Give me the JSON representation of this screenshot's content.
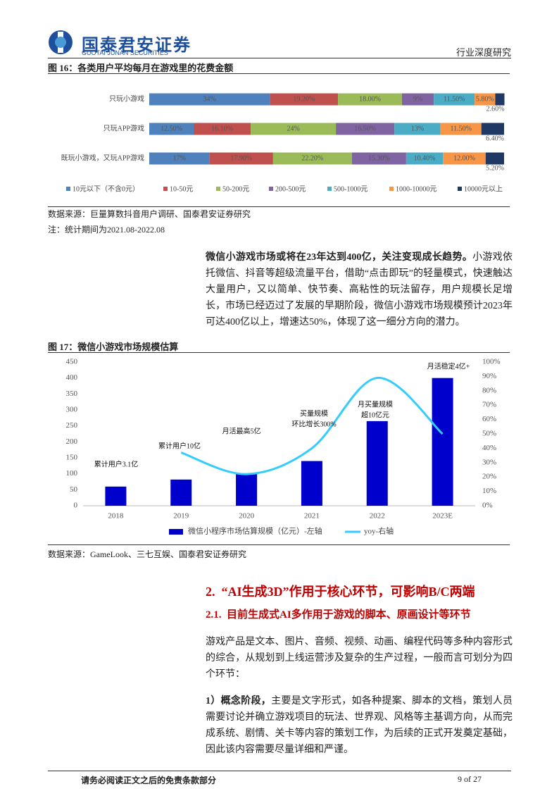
{
  "header": {
    "company": "国泰君安证券",
    "company_en": "GUOTAI JUNAN SECURITIES",
    "report_type": "行业深度研究"
  },
  "paragraph1": {
    "lead": "微信小游戏市场或将在23年达到400亿，关注变现成长趋势。",
    "body": "小游戏依托微信、抖音等超级流量平台，借助“点击即玩”的轻量模式，快速触达大量用户，又以简单、快节奏、高粘性的玩法留存，用户规模长足增长，市场已经迈过了发展的早期阶段，微信小游戏市场规模预计2023年可达400亿以上，增速达50%，体现了这一细分方向的潜力。"
  },
  "section": {
    "heading": "2.  “AI生成3D”作用于核心环节，可影响B/C两端",
    "subheading": "2.1.  目前生成式AI多作用于游戏的脚本、原画设计等环节",
    "paragraph": "游戏产品是文本、图片、音频、视频、动画、编程代码等多种内容形式的综合，从规划到上线运营涉及复杂的生产过程，一般而言可划分为四个环节：",
    "item1_lead": "1）概念阶段，",
    "item1_body": "主要是文字形式，如各种提案、脚本的文档，策划人员需要讨论并确立游戏项目的玩法、世界观、风格等主基调方向，从而完成系统、剧情、关卡等内容的策划工作，为后续的正式开发奠定基础，因此该内容需要尽量详细和严谨。"
  },
  "footer": {
    "disclaimer": "请务必阅读正文之后的免责条款部分",
    "page": "9 of 27"
  },
  "chart_data": [
    {
      "type": "stacked-hbar",
      "title": "图 16：各类用户平均每月在游戏里的花费金额",
      "source": "数据来源：巨量算数抖音用户调研、国泰君安证券研究",
      "note": "注：统计期间为2021.08-2022.08",
      "categories": [
        "只玩小游戏",
        "只玩APP游戏",
        "既玩小游戏，又玩APP游戏"
      ],
      "xlim": [
        0,
        100
      ],
      "legend": "bottom",
      "series": [
        {
          "name": "10元以下（不含0元）",
          "color": "#4f81bd",
          "values": [
            34,
            12.5,
            17
          ],
          "value_labels": [
            "34%",
            "12.50%",
            "17%"
          ]
        },
        {
          "name": "10-50元",
          "color": "#c0504d",
          "values": [
            19.2,
            16.1,
            17.9
          ],
          "value_labels": [
            "19.20%",
            "16.10%",
            "17.90%"
          ]
        },
        {
          "name": "50-200元",
          "color": "#9bbb59",
          "values": [
            18,
            24,
            22.2
          ],
          "value_labels": [
            "18.00%",
            "24%",
            "22.20%"
          ]
        },
        {
          "name": "200-500元",
          "color": "#8064a2",
          "values": [
            9,
            16.5,
            15.3
          ],
          "value_labels": [
            "9%",
            "16.50%",
            "15.30%"
          ]
        },
        {
          "name": "500-1000元",
          "color": "#4bacc6",
          "values": [
            11.5,
            13,
            10.4
          ],
          "value_labels": [
            "11.50%",
            "13%",
            "10.40%"
          ]
        },
        {
          "name": "1000-10000元",
          "color": "#f79646",
          "values": [
            5.8,
            11.5,
            12
          ],
          "value_labels": [
            "5.80%",
            "11.50%",
            "12.00%"
          ]
        },
        {
          "name": "10000元以上",
          "color": "#1f3864",
          "values": [
            2.6,
            6.4,
            5.2
          ],
          "value_labels": [
            "2.60%",
            "6.40%",
            "5.20%"
          ]
        }
      ]
    },
    {
      "type": "combo",
      "title": "图 17：微信小游戏市场规模估算",
      "source": "数据来源：GameLook、三七互娱、国泰君安证券研究",
      "categories": [
        "2018",
        "2019",
        "2020",
        "2021",
        "2022",
        "2023E"
      ],
      "ylim": [
        0,
        450
      ],
      "yticks": [
        0,
        50,
        100,
        150,
        200,
        250,
        300,
        350,
        400,
        450
      ],
      "y2lim": [
        0,
        100
      ],
      "y2ticks": [
        {
          "value": 0,
          "label": "0%"
        },
        {
          "value": 10,
          "label": "10%"
        },
        {
          "value": 20,
          "label": "20%"
        },
        {
          "value": 30,
          "label": "30%"
        },
        {
          "value": 40,
          "label": "40%"
        },
        {
          "value": 50,
          "label": "50%"
        },
        {
          "value": 60,
          "label": "60%"
        },
        {
          "value": 70,
          "label": "70%"
        },
        {
          "value": 80,
          "label": "80%"
        },
        {
          "value": 90,
          "label": "90%"
        },
        {
          "value": 100,
          "label": "100%"
        }
      ],
      "legend": "bottom",
      "series": [
        {
          "name": "微信小程序市场估算规模（亿元）-左轴",
          "type": "bar",
          "color": "#0000cc",
          "values": [
            60,
            82,
            100,
            140,
            265,
            400
          ]
        },
        {
          "name": "yoy-右轴",
          "type": "line",
          "axis": "y2",
          "color": "#33ccff",
          "values": [
            null,
            37,
            22,
            40,
            89,
            50
          ]
        }
      ],
      "annotations": [
        [
          "累计用户3.1亿"
        ],
        [
          "累计用户10亿"
        ],
        [
          "月活最高5亿"
        ],
        [
          "买量规模",
          "环比增长300%"
        ],
        [
          "月买量规模",
          "超10亿元"
        ],
        [
          "月活稳定4亿+"
        ]
      ]
    }
  ]
}
